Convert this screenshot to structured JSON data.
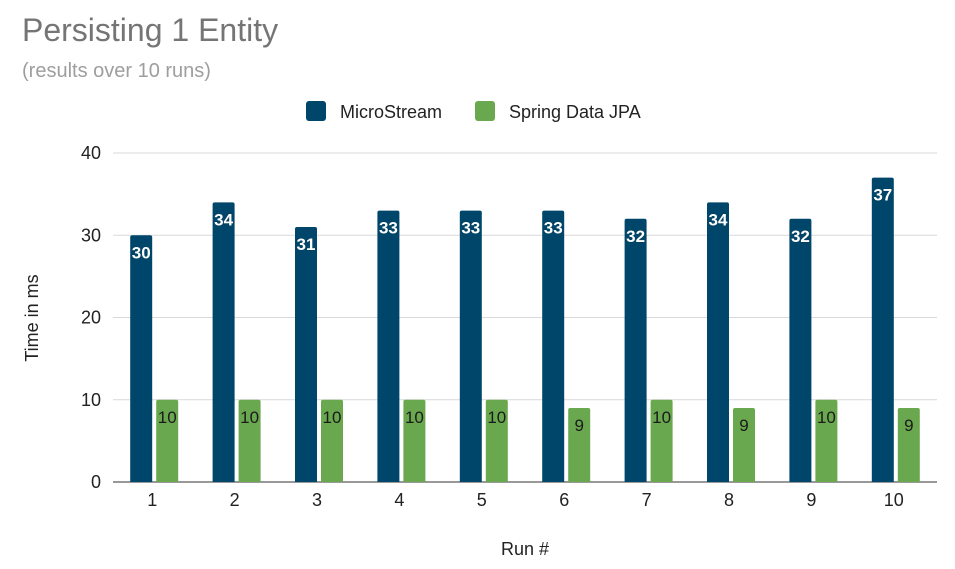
{
  "chart_data": {
    "type": "bar",
    "title": "Persisting 1 Entity",
    "subtitle": "(results over 10 runs)",
    "xlabel": "Run #",
    "ylabel": "Time in ms",
    "categories": [
      "1",
      "2",
      "3",
      "4",
      "5",
      "6",
      "7",
      "8",
      "9",
      "10"
    ],
    "series": [
      {
        "name": "MicroStream",
        "color": "#00466a",
        "values": [
          30,
          34,
          31,
          33,
          33,
          33,
          32,
          34,
          32,
          37
        ]
      },
      {
        "name": "Spring Data JPA",
        "color": "#6aa84f",
        "values": [
          10,
          10,
          10,
          10,
          10,
          9,
          10,
          9,
          10,
          9
        ]
      }
    ],
    "ylim": [
      0,
      40
    ],
    "yticks": [
      "0",
      "10",
      "20",
      "30",
      "40"
    ],
    "grid": true,
    "legend": "top-center",
    "data_labels": true
  }
}
